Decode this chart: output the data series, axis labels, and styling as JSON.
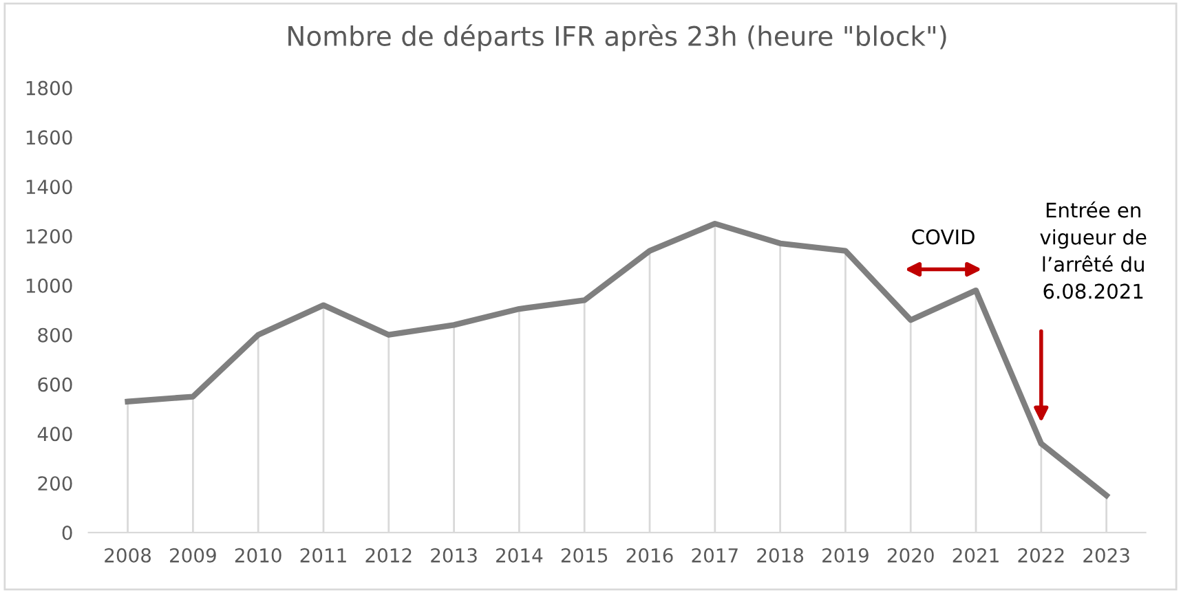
{
  "chart_data": {
    "type": "line",
    "title": "Nombre de départs IFR après 23h (heure \"block\")",
    "categories": [
      "2008",
      "2009",
      "2010",
      "2011",
      "2012",
      "2013",
      "2014",
      "2015",
      "2016",
      "2017",
      "2018",
      "2019",
      "2020",
      "2021",
      "2022",
      "2023"
    ],
    "series": [
      {
        "color": "#7f7f7f",
        "values": [
          530,
          550,
          800,
          920,
          800,
          840,
          905,
          940,
          1140,
          1250,
          1170,
          1140,
          860,
          980,
          360,
          150
        ],
        "errors": [
          [
            0,
            530
          ],
          [
            0,
            550
          ],
          [
            0,
            800
          ],
          [
            0,
            920
          ],
          [
            0,
            800
          ],
          [
            0,
            840
          ],
          [
            0,
            905
          ],
          [
            0,
            940
          ],
          [
            0,
            1140
          ],
          [
            0,
            1250
          ],
          [
            0,
            1170
          ],
          [
            0,
            1140
          ],
          [
            0,
            860
          ],
          [
            0,
            980
          ],
          [
            0,
            360
          ],
          [
            0,
            150
          ]
        ]
      }
    ],
    "ylim": [
      0,
      1800
    ],
    "yticks": [
      0,
      200,
      400,
      600,
      800,
      1000,
      1200,
      1400,
      1600,
      1800
    ],
    "annotations": [
      "COVID",
      "Entrée en\nvigueur de\nl’arrêté du\n6.08.2021"
    ],
    "grid": false,
    "legend": false,
    "marker": "none",
    "line_style": "solid"
  }
}
